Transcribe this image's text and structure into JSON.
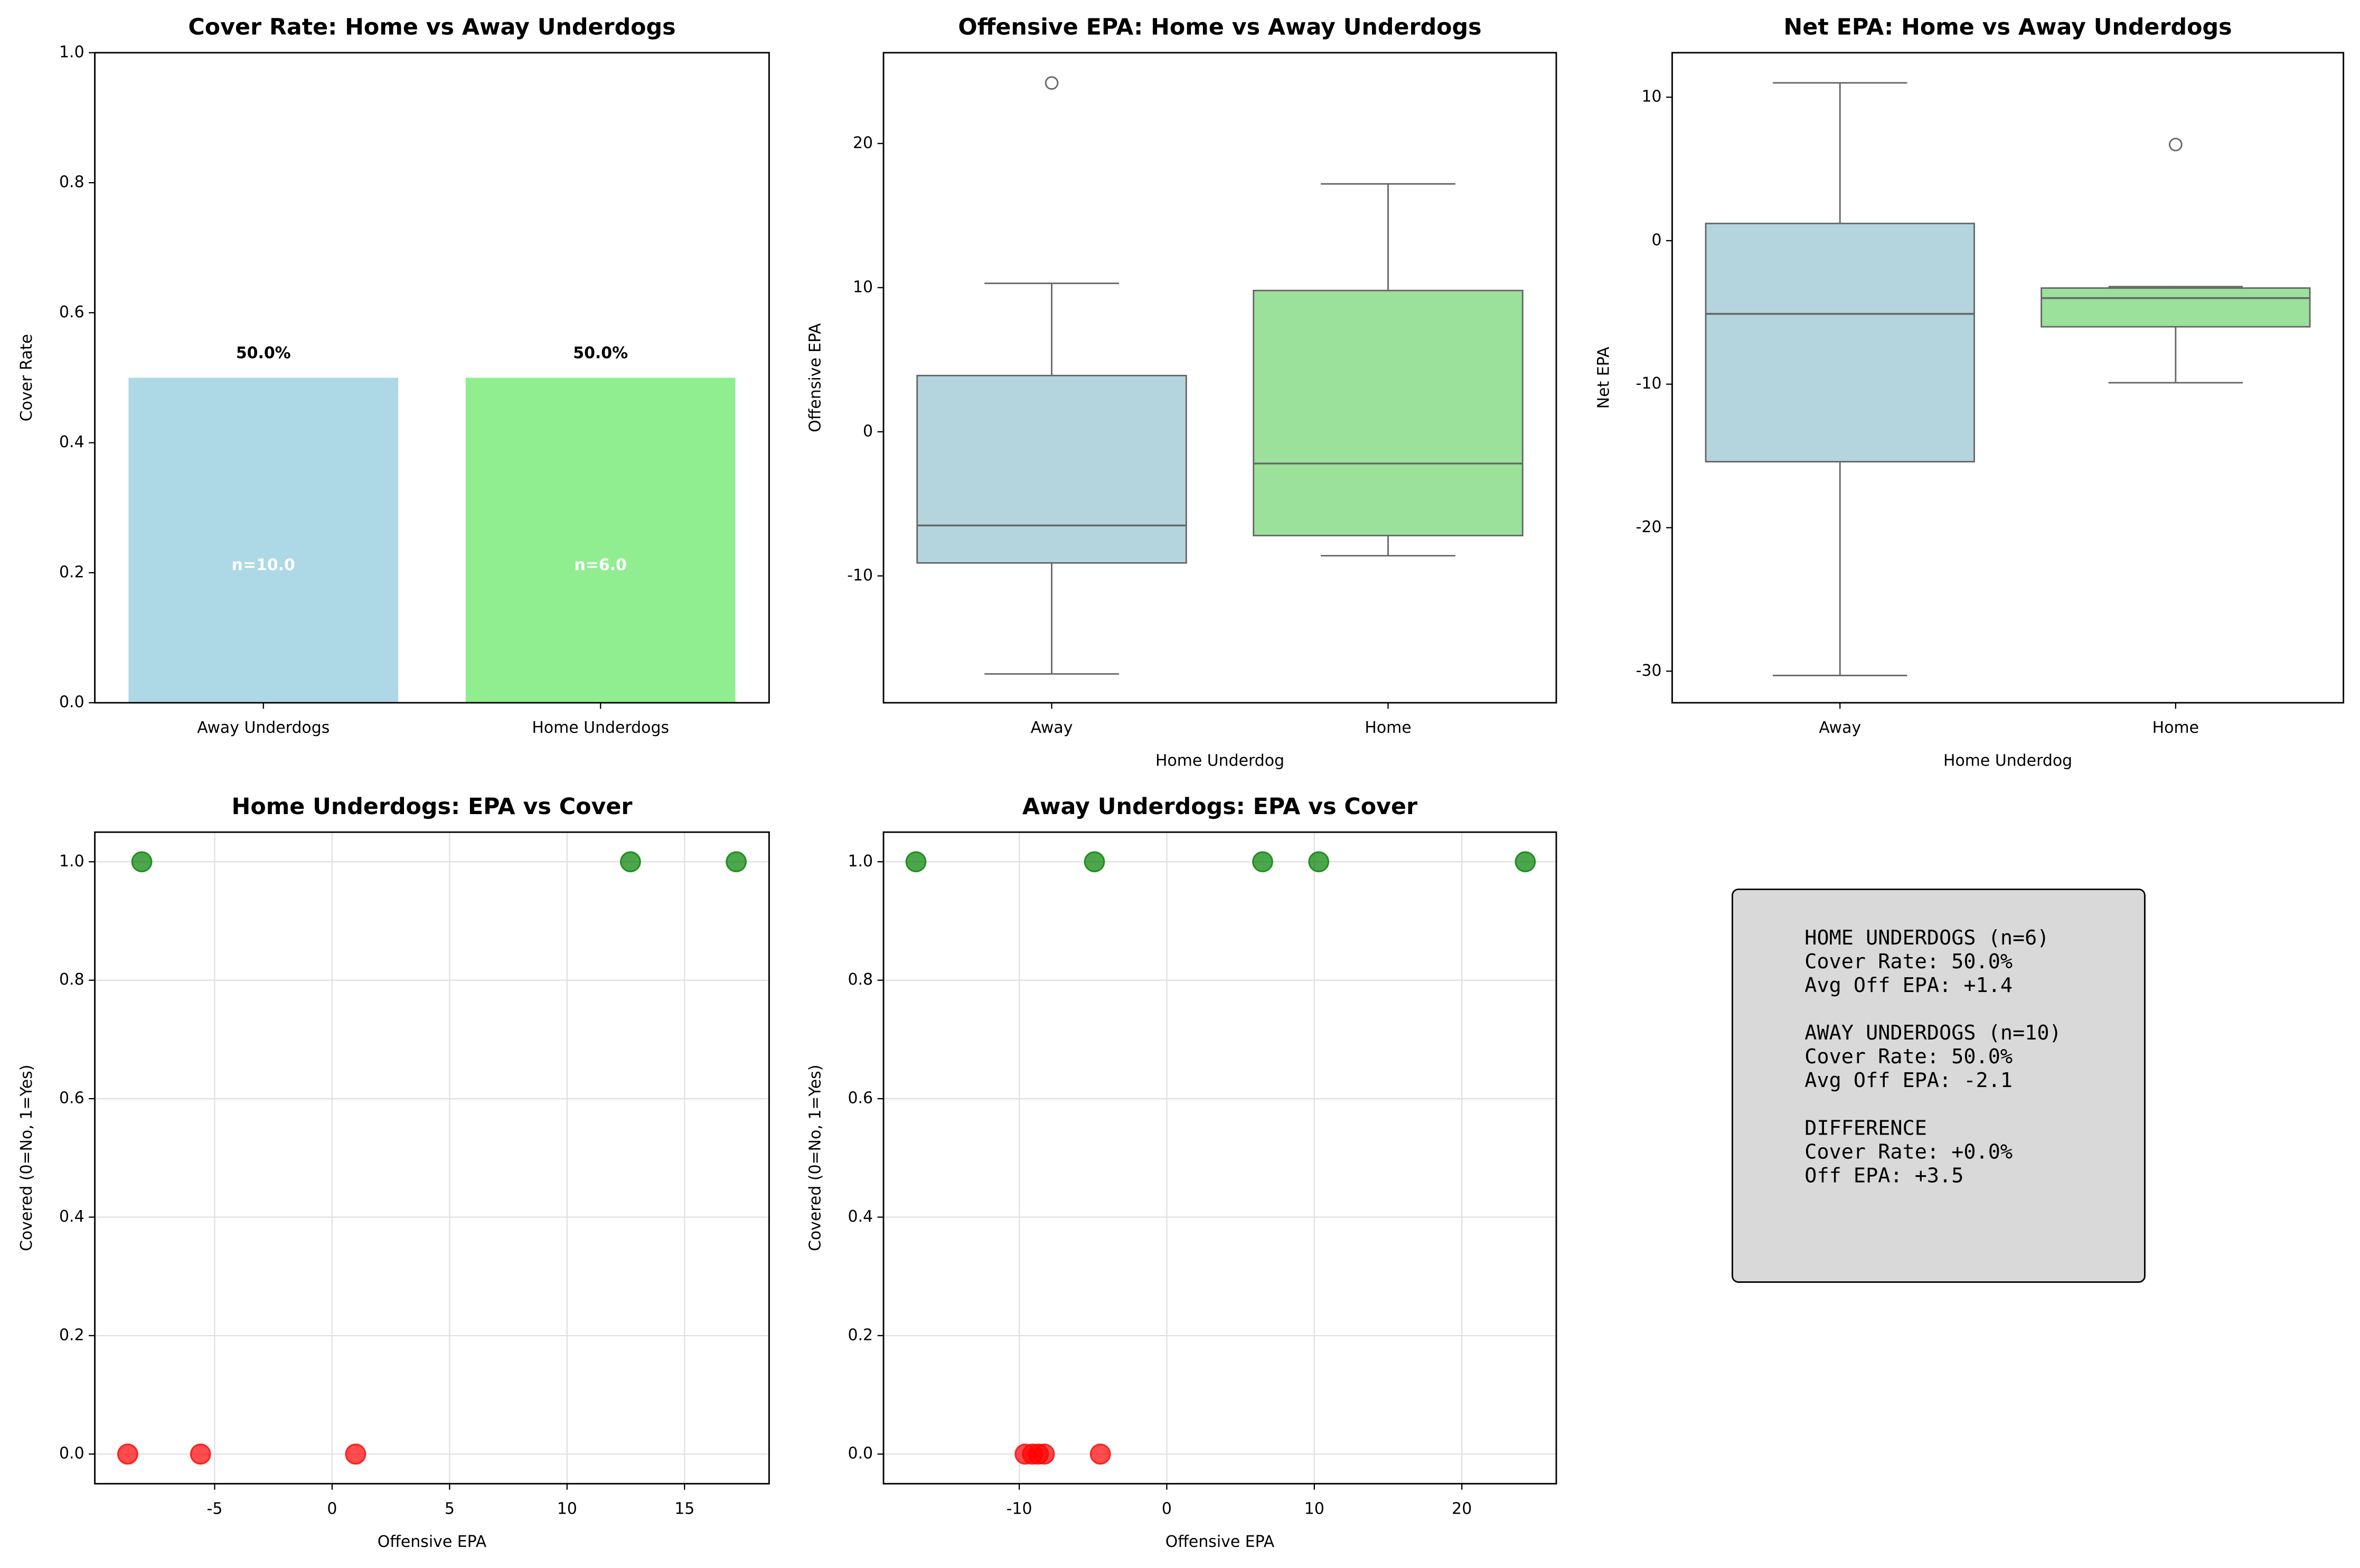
{
  "chart_data": [
    {
      "type": "bar",
      "title": "Cover Rate: Home vs Away Underdogs",
      "ylabel": "Cover Rate",
      "categories": [
        "Away Underdogs",
        "Home Underdogs"
      ],
      "values": [
        0.5,
        0.5
      ],
      "value_labels": [
        "50.0%",
        "50.0%"
      ],
      "inner_labels": [
        "n=10.0",
        "n=6.0"
      ],
      "colors": [
        "#add8e6",
        "#90ee90"
      ],
      "ylim": [
        0,
        1
      ],
      "yticks": [
        {
          "value": 0,
          "label": "0.0"
        },
        0.2,
        0.4,
        0.6,
        0.8,
        {
          "value": 1,
          "label": "1.0"
        }
      ],
      "grid": false
    },
    {
      "type": "box",
      "title": "Offensive EPA: Home vs Away Underdogs",
      "xlabel": "Home Underdog",
      "ylabel": "Offensive EPA",
      "categories": [
        "Away",
        "Home"
      ],
      "colors": [
        "#b4d5de",
        "#9be19b"
      ],
      "boxes": [
        {
          "whislo": -16.8,
          "q1": -9.1,
          "med": -6.5,
          "q3": 3.9,
          "whishi": 10.3,
          "fliers": [
            24.2
          ]
        },
        {
          "whislo": -8.6,
          "q1": -7.2,
          "med": -2.2,
          "q3": 9.8,
          "whishi": 17.2,
          "fliers": []
        }
      ],
      "ylim": [
        -18.8,
        26.3
      ],
      "yticks": [
        -10,
        0,
        10,
        20
      ],
      "grid": false
    },
    {
      "type": "box",
      "title": "Net EPA: Home vs Away Underdogs",
      "xlabel": "Home Underdog",
      "ylabel": "Net EPA",
      "categories": [
        "Away",
        "Home"
      ],
      "colors": [
        "#b4d5de",
        "#9be19b"
      ],
      "boxes": [
        {
          "whislo": -30.3,
          "q1": -15.4,
          "med": -5.1,
          "q3": 1.2,
          "whishi": 11.0,
          "fliers": []
        },
        {
          "whislo": -9.9,
          "q1": -6.0,
          "med": -4.0,
          "q3": -3.3,
          "whishi": -3.2,
          "fliers": [
            6.7
          ]
        }
      ],
      "ylim": [
        -32.2,
        13.1
      ],
      "yticks": [
        -30,
        -20,
        -10,
        0,
        10
      ],
      "grid": false
    },
    {
      "type": "scatter",
      "title": "Home Underdogs: EPA vs Cover",
      "xlabel": "Offensive EPA",
      "ylabel": "Covered (0=No, 1=Yes)",
      "series": [
        {
          "color": "#008000",
          "x": [
            -8.1,
            12.7,
            17.2
          ],
          "values": [
            1,
            1,
            1
          ]
        },
        {
          "color": "#ff0000",
          "x": [
            -8.7,
            -5.6,
            1.0
          ],
          "values": [
            0,
            0,
            0
          ]
        }
      ],
      "xlim": [
        -10.1,
        18.6
      ],
      "xticks": [
        -5,
        0,
        5,
        10,
        15
      ],
      "ylim": [
        -0.05,
        1.05
      ],
      "yticks": [
        {
          "value": 0,
          "label": "0.0"
        },
        0.2,
        0.4,
        0.6,
        0.8,
        {
          "value": 1,
          "label": "1.0"
        }
      ],
      "grid": true
    },
    {
      "type": "scatter",
      "title": "Away Underdogs: EPA vs Cover",
      "xlabel": "Offensive EPA",
      "ylabel": "Covered (0=No, 1=Yes)",
      "series": [
        {
          "color": "#008000",
          "x": [
            -17.0,
            -4.9,
            6.5,
            10.3,
            24.3
          ],
          "values": [
            1,
            1,
            1,
            1,
            1
          ]
        },
        {
          "color": "#ff0000",
          "x": [
            -9.6,
            -9.1,
            -8.7,
            -8.3,
            -4.5
          ],
          "values": [
            0,
            0,
            0,
            0,
            0
          ]
        }
      ],
      "xlim": [
        -19.2,
        26.4
      ],
      "xticks": [
        -10,
        0,
        10,
        20
      ],
      "ylim": [
        -0.05,
        1.05
      ],
      "yticks": [
        {
          "value": 0,
          "label": "0.0"
        },
        0.2,
        0.4,
        0.6,
        0.8,
        {
          "value": 1,
          "label": "1.0"
        }
      ],
      "grid": true
    }
  ],
  "text_panel": {
    "sections": [
      {
        "heading": "HOME UNDERDOGS (n=6)",
        "lines": [
          "Cover Rate: 50.0%",
          "Avg Off EPA: +1.4"
        ]
      },
      {
        "heading": "AWAY UNDERDOGS (n=10)",
        "lines": [
          "Cover Rate: 50.0%",
          "Avg Off EPA: -2.1"
        ]
      },
      {
        "heading": "DIFFERENCE",
        "lines": [
          "Cover Rate: +0.0%",
          "Off EPA: +3.5"
        ]
      }
    ]
  }
}
